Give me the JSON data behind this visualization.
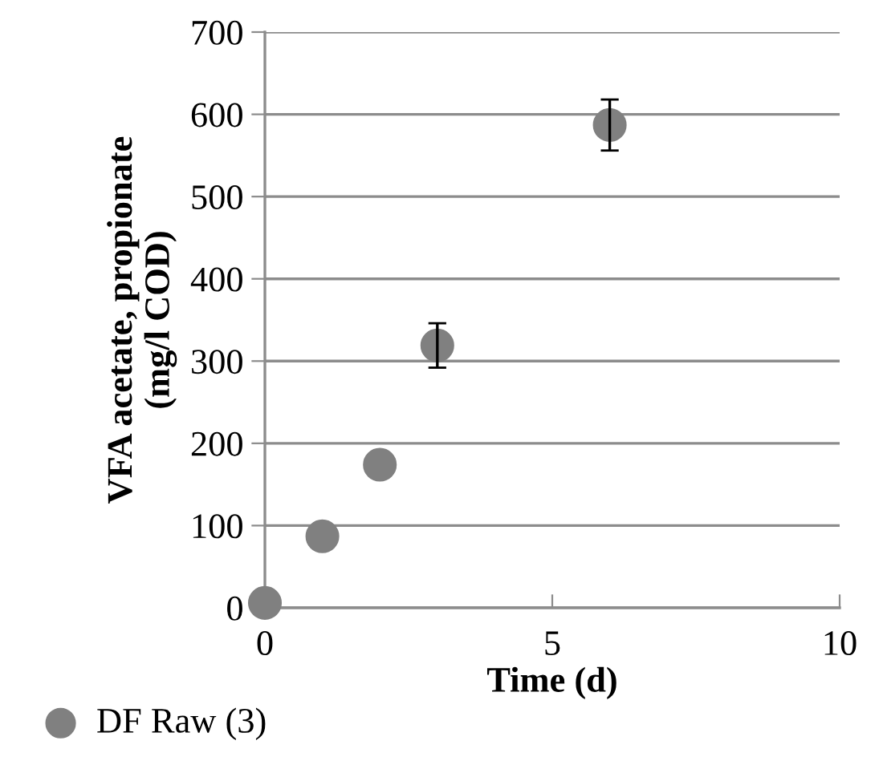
{
  "chart_data": {
    "type": "scatter",
    "xlabel": "Time (d)",
    "ylabel": "VFA acetate, propionate\n(mg/l COD)",
    "series": [
      {
        "name": "DF Raw (3)",
        "color": "#808080",
        "x": [
          0,
          1,
          2,
          3,
          6
        ],
        "values": [
          6,
          87,
          174,
          319,
          587
        ],
        "errors": [
          null,
          null,
          null,
          27,
          31
        ]
      }
    ],
    "xlim": [
      0,
      10
    ],
    "ylim": [
      0,
      700
    ],
    "xticks": [
      0,
      5,
      10
    ],
    "yticks": [
      0,
      100,
      200,
      300,
      400,
      500,
      600,
      700
    ],
    "grid": "y",
    "legend": "bottom left",
    "marker": "circle"
  }
}
